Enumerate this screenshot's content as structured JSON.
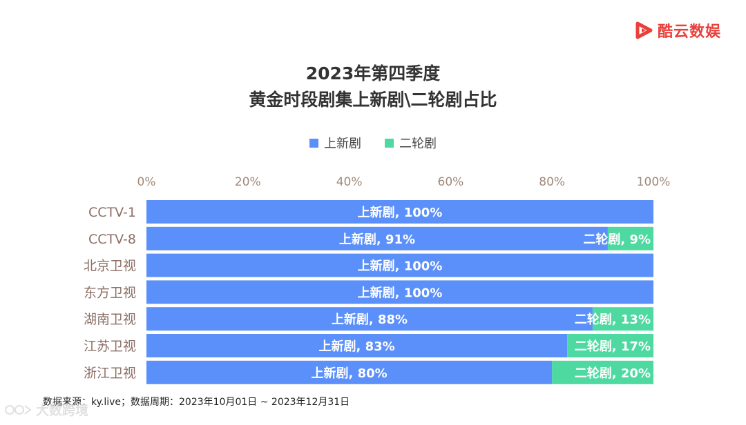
{
  "brand": {
    "name": "酷云数娱",
    "color": "#e8413c"
  },
  "watermark": {
    "text": "大数跨境"
  },
  "footer": {
    "source": "数据来源：ky.live；数据周期：2023年10月01日 ~ 2023年12月31日"
  },
  "chart_data": {
    "type": "bar",
    "orientation": "horizontal",
    "stacked": "percent",
    "title": [
      "2023年第四季度",
      "黄金时段剧集上新剧\\二轮剧占比"
    ],
    "categories": [
      "CCTV-1",
      "CCTV-8",
      "北京卫视",
      "东方卫视",
      "湖南卫视",
      "江苏卫视",
      "浙江卫视"
    ],
    "series": [
      {
        "name": "上新剧",
        "color": "#5b8ff9",
        "values": [
          100,
          91,
          100,
          100,
          88,
          83,
          80
        ]
      },
      {
        "name": "二轮剧",
        "color": "#4dd9a0",
        "values": [
          0,
          9,
          0,
          0,
          13,
          17,
          20
        ]
      }
    ],
    "xlim": [
      0,
      100
    ],
    "xticks": [
      "0%",
      "20%",
      "40%",
      "60%",
      "80%",
      "100%"
    ],
    "legend_position": "top-center",
    "grid": false,
    "label_format": "{series}, {value}%"
  }
}
